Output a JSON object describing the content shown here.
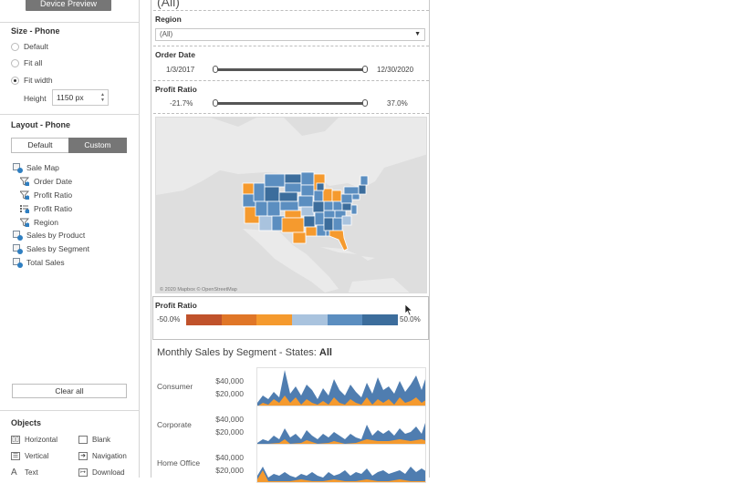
{
  "left_panel": {
    "device_preview_label": "Device Preview",
    "size_title": "Size - Phone",
    "size_options": [
      {
        "label": "Default",
        "selected": false
      },
      {
        "label": "Fit all",
        "selected": false
      },
      {
        "label": "Fit width",
        "selected": true
      }
    ],
    "height_label": "Height",
    "height_value": "1150 px",
    "layout_title": "Layout - Phone",
    "layout_tabs": [
      {
        "label": "Default",
        "active": false
      },
      {
        "label": "Custom",
        "active": true
      }
    ],
    "layout_items": [
      {
        "label": "Sale Map",
        "icon": "sheet-icon"
      },
      {
        "label": "Order Date",
        "icon": "filter-icon"
      },
      {
        "label": "Profit Ratio",
        "icon": "filter-icon"
      },
      {
        "label": "Profit Ratio",
        "icon": "legend-icon"
      },
      {
        "label": "Region",
        "icon": "filter-icon"
      },
      {
        "label": "Sales by Product",
        "icon": "sheet-icon"
      },
      {
        "label": "Sales by Segment",
        "icon": "sheet-icon"
      },
      {
        "label": "Total Sales",
        "icon": "sheet-icon"
      }
    ],
    "clear_all_label": "Clear all",
    "objects_title": "Objects",
    "objects": [
      {
        "label": "Horizontal",
        "icon": "horizontal-icon"
      },
      {
        "label": "Blank",
        "icon": "blank-icon"
      },
      {
        "label": "Vertical",
        "icon": "vertical-icon"
      },
      {
        "label": "Navigation",
        "icon": "navigation-icon"
      },
      {
        "label": "Text",
        "icon": "text-icon"
      },
      {
        "label": "Download",
        "icon": "download-icon"
      }
    ]
  },
  "dashboard": {
    "top_value": "(All)",
    "region_label": "Region",
    "region_value": "(All)",
    "order_date_label": "Order Date",
    "order_date_min": "1/3/2017",
    "order_date_max": "12/30/2020",
    "profit_ratio_label": "Profit Ratio",
    "profit_ratio_min": "-21.7%",
    "profit_ratio_max": "37.0%",
    "map_attribution": "© 2020 Mapbox © OpenStreetMap",
    "legend_title": "Profit Ratio",
    "legend_min": "-50.0%",
    "legend_max": "50.0%",
    "legend_colors": [
      "#c0522b",
      "#e07627",
      "#f59a2e",
      "#a9c3de",
      "#5b8ec0",
      "#3c6d9c"
    ],
    "chart_title_prefix": "Monthly Sales by Segment - States: ",
    "chart_title_bold": "All",
    "segments": [
      {
        "label": "Consumer",
        "ticks": [
          "$40,000",
          "$20,000"
        ]
      },
      {
        "label": "Corporate",
        "ticks": [
          "$40,000",
          "$20,000"
        ]
      },
      {
        "label": "Home Office",
        "ticks": [
          "$40,000",
          "$20,000"
        ]
      }
    ],
    "accent_blue": "#4f7db0",
    "accent_orange": "#f59a2e"
  }
}
